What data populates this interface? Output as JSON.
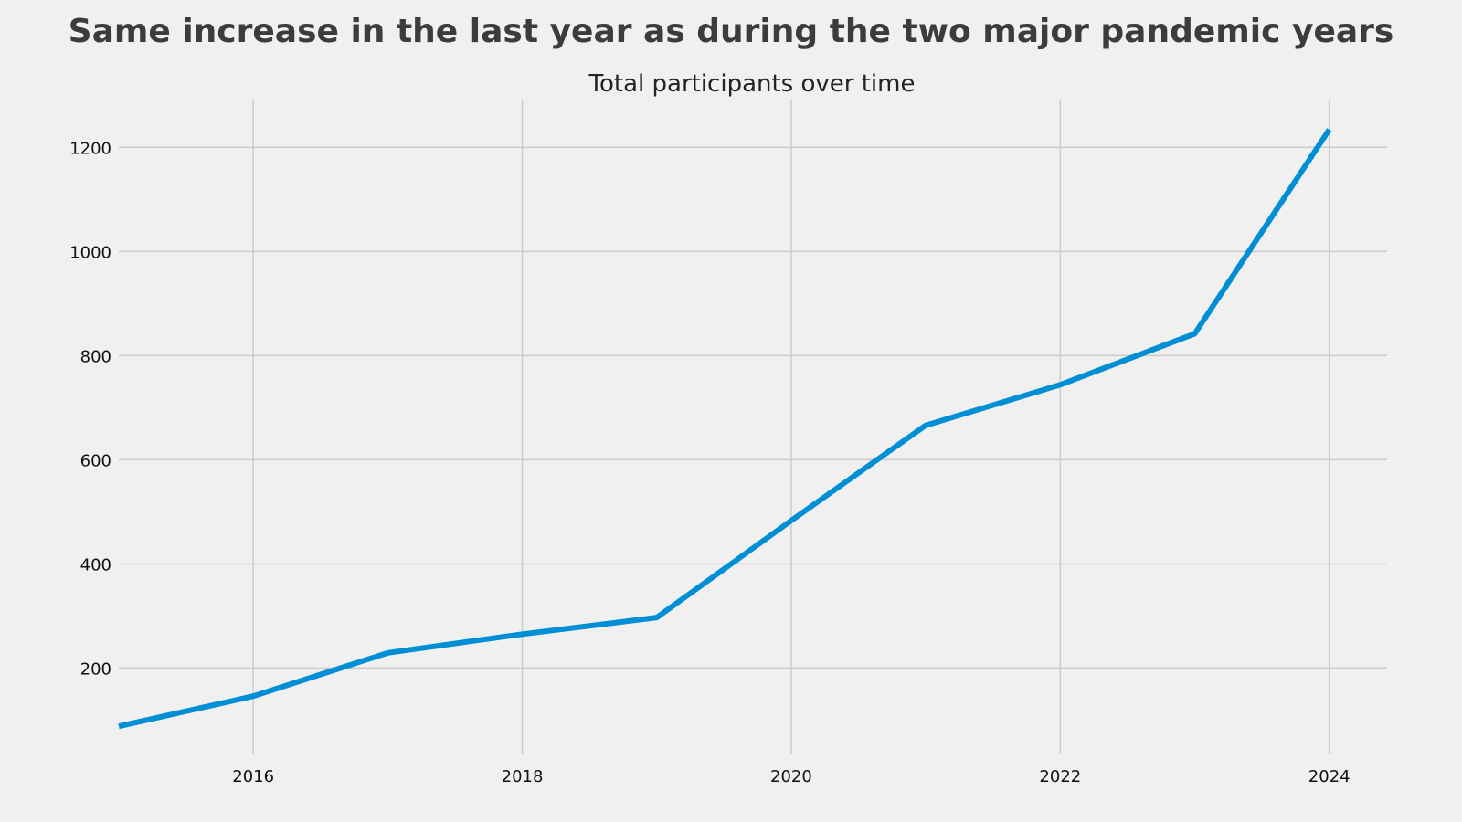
{
  "chart_data": {
    "type": "line",
    "title": "Same increase in the last year as during the two major pandemic years",
    "subtitle": "Total participants over time",
    "xlabel": "",
    "ylabel": "",
    "x": [
      2015,
      2016,
      2017,
      2018,
      2019,
      2020,
      2021,
      2022,
      2023,
      2024
    ],
    "series": [
      {
        "values": [
          88,
          146,
          229,
          265,
          297,
          483,
          666,
          744,
          842,
          1234
        ]
      }
    ],
    "xlim": [
      2015,
      2024.43
    ],
    "ylim": [
      34,
      1290
    ],
    "xticks": [
      2016,
      2018,
      2020,
      2022,
      2024
    ],
    "yticks": [
      200,
      400,
      600,
      800,
      1000,
      1200
    ],
    "xtick_labels": [
      "2016",
      "2018",
      "2020",
      "2022",
      "2024"
    ],
    "ytick_labels": [
      "200",
      "400",
      "600",
      "800",
      "1000",
      "1200"
    ],
    "grid": true,
    "legend": "none",
    "colors": {
      "background": "#f0f0f0",
      "line": "#008fd5",
      "grid": "#cbcbcb",
      "title": "#3c3c3c"
    }
  }
}
